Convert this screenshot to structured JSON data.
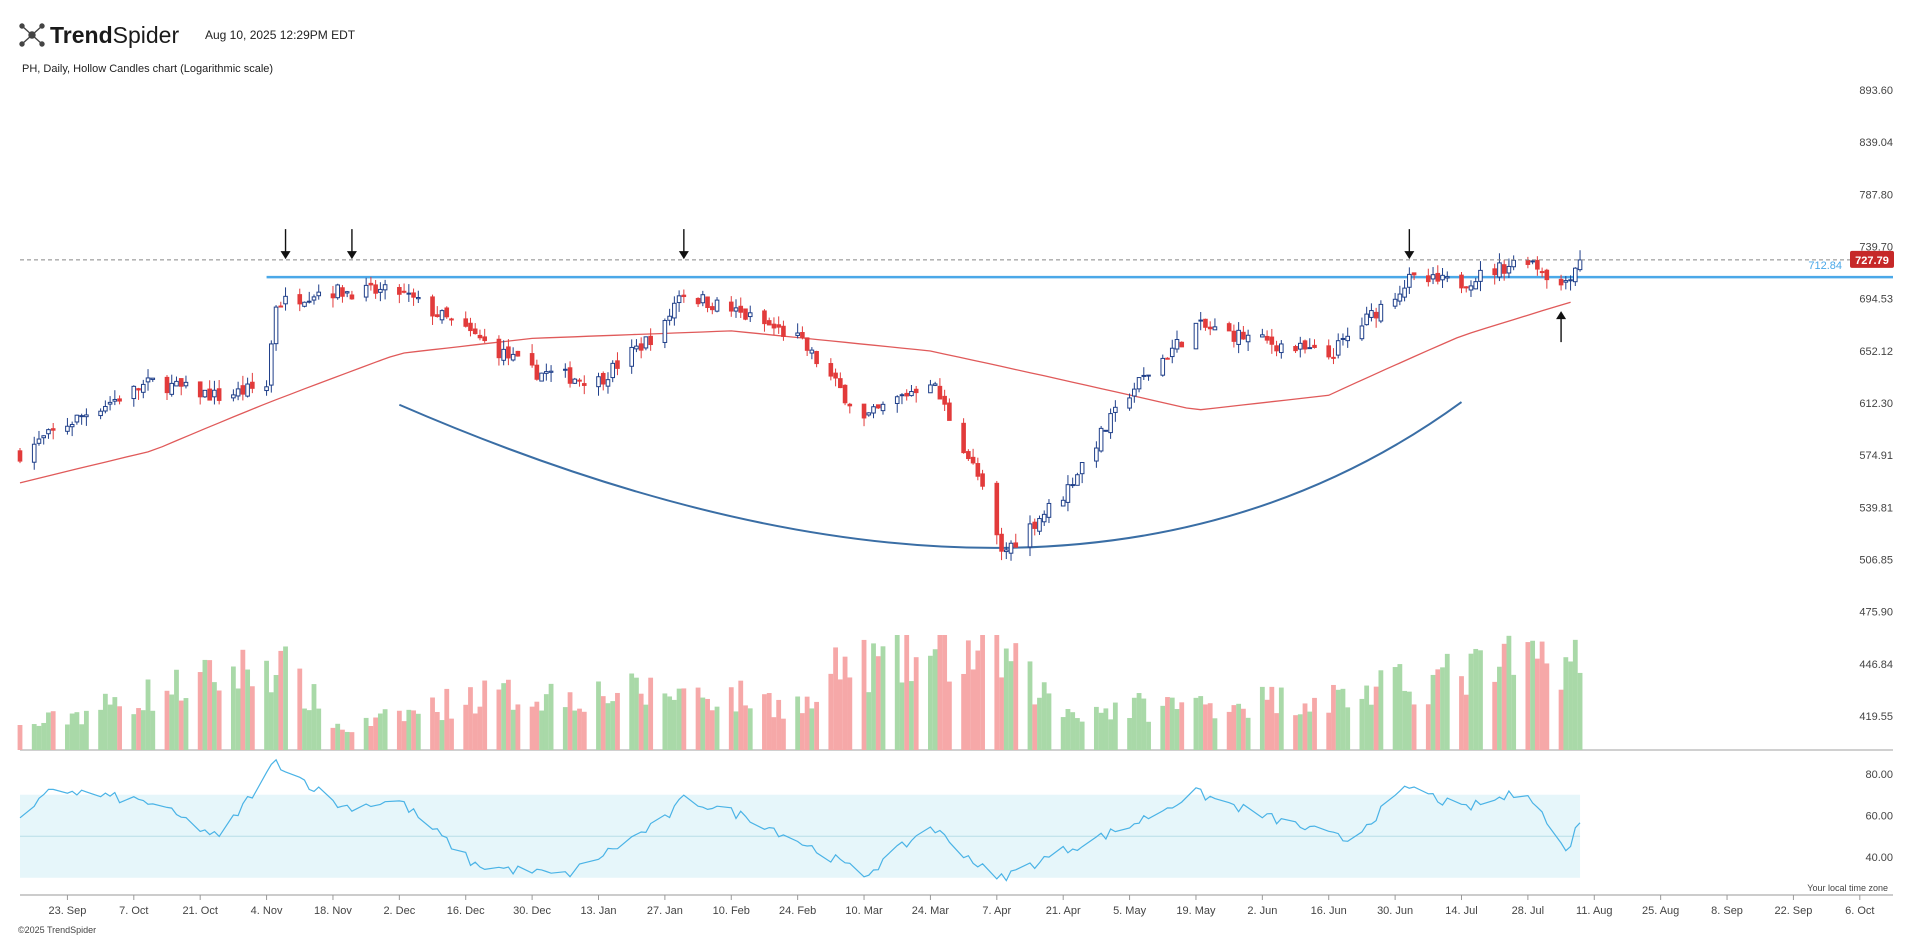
{
  "header": {
    "brand_bold": "Trend",
    "brand_light": "Spider",
    "timestamp": "Aug 10, 2025 12:29PM EDT",
    "subtitle": "PH, Daily, Hollow Candles chart (Logarithmic scale)"
  },
  "footer": {
    "copyright": "©2025 TrendSpider",
    "timezone_note": "Your local time zone"
  },
  "colors": {
    "up": "#1f3f8a",
    "down": "#e23b3b",
    "vol_up": "#a9d9a8",
    "vol_down": "#f6a8a8",
    "sma": "#e05a5a",
    "resistance": "#4aa8e8",
    "cup": "#3a6ea5",
    "rsi_line": "#4ab3e6",
    "rsi_band": "#e6f6fa",
    "price_badge": "#c62828"
  },
  "chart_data": {
    "type": "candlestick",
    "symbol": "PH",
    "interval": "Daily",
    "scale": "log",
    "y_ticks": [
      893.6,
      839.04,
      787.8,
      739.7,
      694.53,
      652.12,
      612.3,
      574.91,
      539.81,
      506.85,
      475.9,
      446.84,
      419.55
    ],
    "y_tick_labels": [
      "893.60",
      "839.04",
      "787.80",
      "739.70",
      "694.53",
      "652.12",
      "612.30",
      "574.91",
      "539.81",
      "506.85",
      "475.90",
      "446.84",
      "419.55"
    ],
    "x_tick_labels": [
      "23. Sep",
      "7. Oct",
      "21. Oct",
      "4. Nov",
      "18. Nov",
      "2. Dec",
      "16. Dec",
      "30. Dec",
      "13. Jan",
      "27. Jan",
      "10. Feb",
      "24. Feb",
      "10. Mar",
      "24. Mar",
      "7. Apr",
      "21. Apr",
      "5. May",
      "19. May",
      "2. Jun",
      "16. Jun",
      "30. Jun",
      "14. Jul",
      "28. Jul",
      "11. Aug",
      "25. Aug",
      "8. Sep",
      "22. Sep",
      "6. Oct"
    ],
    "price_anchors": [
      {
        "date": "2024-09-13",
        "close": 576
      },
      {
        "date": "2024-09-27",
        "close": 605
      },
      {
        "date": "2024-10-11",
        "close": 628
      },
      {
        "date": "2024-10-25",
        "close": 617
      },
      {
        "date": "2024-11-04",
        "close": 625
      },
      {
        "date": "2024-11-06",
        "close": 690
      },
      {
        "date": "2024-11-15",
        "close": 701
      },
      {
        "date": "2024-12-02",
        "close": 700
      },
      {
        "date": "2024-12-16",
        "close": 668
      },
      {
        "date": "2024-12-30",
        "close": 636
      },
      {
        "date": "2025-01-13",
        "close": 629
      },
      {
        "date": "2025-01-27",
        "close": 672
      },
      {
        "date": "2025-01-30",
        "close": 700
      },
      {
        "date": "2025-02-10",
        "close": 685
      },
      {
        "date": "2025-02-24",
        "close": 662
      },
      {
        "date": "2025-03-10",
        "close": 600
      },
      {
        "date": "2025-03-24",
        "close": 630
      },
      {
        "date": "2025-04-03",
        "close": 560
      },
      {
        "date": "2025-04-08",
        "close": 510
      },
      {
        "date": "2025-04-21",
        "close": 548
      },
      {
        "date": "2025-05-05",
        "close": 620
      },
      {
        "date": "2025-05-19",
        "close": 672
      },
      {
        "date": "2025-06-02",
        "close": 660
      },
      {
        "date": "2025-06-16",
        "close": 648
      },
      {
        "date": "2025-07-03",
        "close": 710
      },
      {
        "date": "2025-07-14",
        "close": 708
      },
      {
        "date": "2025-07-28",
        "close": 730
      },
      {
        "date": "2025-08-04",
        "close": 705
      },
      {
        "date": "2025-08-08",
        "close": 727.79
      }
    ],
    "last_price": 727.79,
    "last_price_label": "727.79",
    "resistance_level": 712.84,
    "resistance_label": "712.84",
    "resistance_start": "2024-11-04",
    "sma_anchors": [
      {
        "date": "2024-09-13",
        "value": 556
      },
      {
        "date": "2024-10-11",
        "value": 578
      },
      {
        "date": "2024-11-04",
        "value": 612
      },
      {
        "date": "2024-12-02",
        "value": 650
      },
      {
        "date": "2024-12-30",
        "value": 662
      },
      {
        "date": "2025-02-10",
        "value": 668
      },
      {
        "date": "2025-03-24",
        "value": 652
      },
      {
        "date": "2025-05-19",
        "value": 607
      },
      {
        "date": "2025-06-16",
        "value": 618
      },
      {
        "date": "2025-07-14",
        "value": 664
      },
      {
        "date": "2025-08-08",
        "value": 694
      }
    ],
    "cup_curve": [
      {
        "date": "2024-12-02",
        "value": 611
      },
      {
        "date": "2025-04-07",
        "value": 514
      },
      {
        "date": "2025-07-14",
        "value": 613
      }
    ],
    "arrows": [
      {
        "date": "2024-11-08",
        "direction": "down"
      },
      {
        "date": "2024-11-22",
        "direction": "down"
      },
      {
        "date": "2025-01-31",
        "direction": "down"
      },
      {
        "date": "2025-07-03",
        "direction": "down"
      },
      {
        "date": "2025-08-04",
        "direction": "up"
      }
    ],
    "volume_anchors": [
      {
        "date": "2024-09-13",
        "value": 0.22
      },
      {
        "date": "2024-11-06",
        "value": 0.9
      },
      {
        "date": "2024-11-20",
        "value": 0.2
      },
      {
        "date": "2024-12-18",
        "value": 0.55
      },
      {
        "date": "2025-01-31",
        "value": 0.6
      },
      {
        "date": "2025-02-27",
        "value": 0.45
      },
      {
        "date": "2025-03-05",
        "value": 0.85
      },
      {
        "date": "2025-04-07",
        "value": 1.0
      },
      {
        "date": "2025-04-21",
        "value": 0.4
      },
      {
        "date": "2025-06-20",
        "value": 0.55
      },
      {
        "date": "2025-08-01",
        "value": 0.95
      }
    ],
    "rsi_levels": {
      "upper": 70,
      "middle": 50,
      "lower": 30
    },
    "rsi_ticks": [
      80,
      60,
      40
    ],
    "rsi_tick_labels": [
      "80.00",
      "60.00",
      "40.00"
    ],
    "rsi_anchors": [
      {
        "date": "2024-09-13",
        "value": 57
      },
      {
        "date": "2024-09-20",
        "value": 73
      },
      {
        "date": "2024-10-11",
        "value": 66
      },
      {
        "date": "2024-10-25",
        "value": 49
      },
      {
        "date": "2024-11-06",
        "value": 86
      },
      {
        "date": "2024-11-20",
        "value": 64
      },
      {
        "date": "2024-12-02",
        "value": 67
      },
      {
        "date": "2024-12-18",
        "value": 36
      },
      {
        "date": "2025-01-06",
        "value": 31
      },
      {
        "date": "2025-01-27",
        "value": 58
      },
      {
        "date": "2025-01-31",
        "value": 68
      },
      {
        "date": "2025-02-14",
        "value": 59
      },
      {
        "date": "2025-03-03",
        "value": 40
      },
      {
        "date": "2025-03-10",
        "value": 31
      },
      {
        "date": "2025-03-24",
        "value": 55
      },
      {
        "date": "2025-04-07",
        "value": 29
      },
      {
        "date": "2025-04-21",
        "value": 43
      },
      {
        "date": "2025-05-05",
        "value": 55
      },
      {
        "date": "2025-05-19",
        "value": 71
      },
      {
        "date": "2025-06-02",
        "value": 60
      },
      {
        "date": "2025-06-20",
        "value": 48
      },
      {
        "date": "2025-07-03",
        "value": 74
      },
      {
        "date": "2025-07-14",
        "value": 63
      },
      {
        "date": "2025-07-28",
        "value": 72
      },
      {
        "date": "2025-08-05",
        "value": 42
      },
      {
        "date": "2025-08-08",
        "value": 58
      }
    ]
  }
}
